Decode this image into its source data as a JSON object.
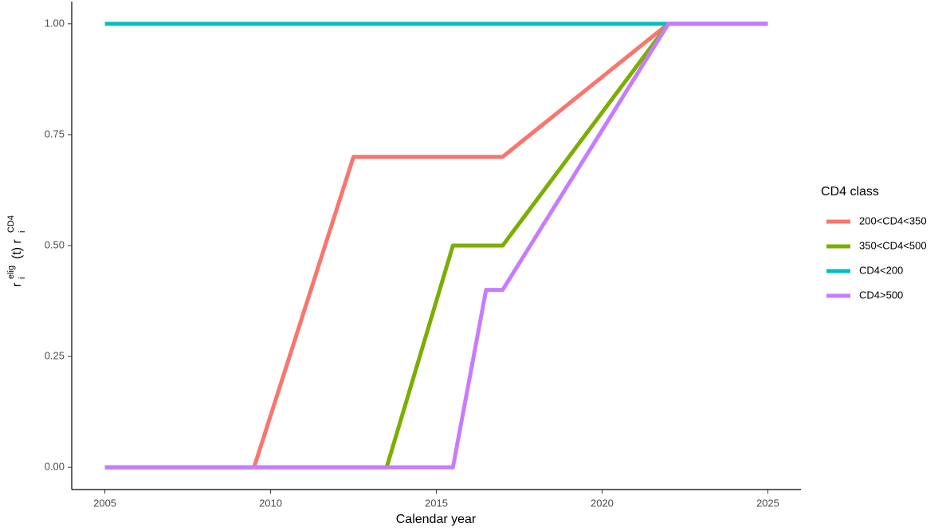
{
  "chart_data": {
    "type": "line",
    "xlabel": "Calendar year",
    "ylabel": [
      "r",
      "i",
      "elig",
      "(t) r",
      "i",
      "CD4"
    ],
    "legend_title": "CD4 class",
    "legend": "right",
    "xlim": [
      2004,
      2026
    ],
    "xticks": [
      2005,
      2010,
      2015,
      2020,
      2025
    ],
    "ylim": [
      -0.05,
      1.05
    ],
    "yticks": [
      {
        "value": 0,
        "label": "0.00"
      },
      {
        "value": 0.25,
        "label": "0.25"
      },
      {
        "value": 0.5,
        "label": "0.50"
      },
      {
        "value": 0.75,
        "label": "0.75"
      },
      {
        "value": 1,
        "label": "1.00"
      }
    ],
    "series": [
      {
        "name": "200<CD4<350",
        "color": "#F8766D",
        "x": [
          2005,
          2009.5,
          2012.5,
          2017,
          2022,
          2025
        ],
        "values": [
          0,
          0,
          0.7,
          0.7,
          1,
          1
        ]
      },
      {
        "name": "350<CD4<500",
        "color": "#7CAE00",
        "x": [
          2005,
          2013.5,
          2015.5,
          2017,
          2022,
          2025
        ],
        "values": [
          0,
          0,
          0.5,
          0.5,
          1,
          1
        ]
      },
      {
        "name": "CD4<200",
        "color": "#00BFC4",
        "x": [
          2005,
          2025
        ],
        "values": [
          1,
          1
        ]
      },
      {
        "name": "CD4>500",
        "color": "#C77CFF",
        "x": [
          2005,
          2015.5,
          2016.5,
          2017,
          2022,
          2025
        ],
        "values": [
          0,
          0,
          0.4,
          0.4,
          1,
          1
        ]
      }
    ]
  }
}
